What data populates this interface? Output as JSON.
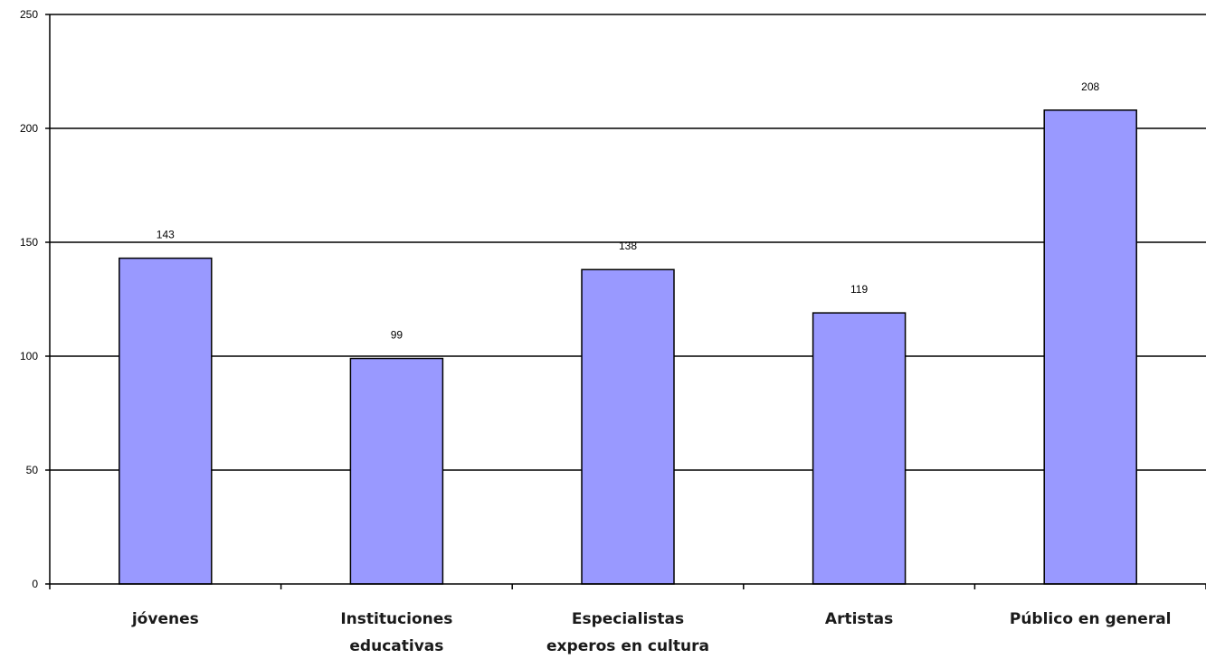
{
  "chart_data": {
    "type": "bar",
    "title": "",
    "xlabel": "",
    "ylabel": "",
    "categories": [
      [
        "jóvenes"
      ],
      [
        "Instituciones",
        "educativas"
      ],
      [
        "Especialistas",
        "experos en cultura"
      ],
      [
        "Artistas"
      ],
      [
        "Público en general"
      ]
    ],
    "values": [
      143,
      99,
      138,
      119,
      208
    ],
    "ylim": [
      0,
      250
    ],
    "yticks": [
      0,
      50,
      100,
      150,
      200,
      250
    ],
    "grid": true,
    "legend": "none",
    "colors": {
      "bar_fill": "#9999ff",
      "bar_stroke": "#000000",
      "gridline": "#000000",
      "axis": "#000000"
    }
  }
}
